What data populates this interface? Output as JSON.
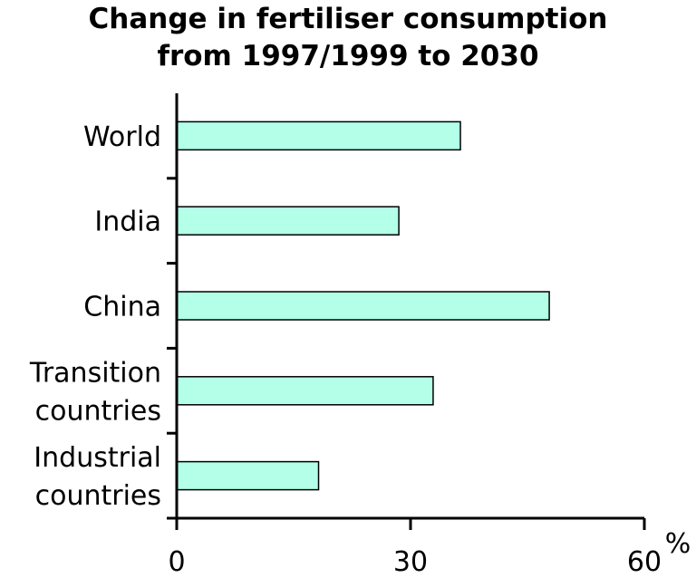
{
  "chart_data": {
    "type": "bar",
    "orientation": "horizontal",
    "title": "Change in fertiliser consumption",
    "subtitle": "from 1997/1999 to 2030",
    "categories": [
      [
        "World"
      ],
      [
        "India"
      ],
      [
        "China"
      ],
      [
        "Transition",
        "countries"
      ],
      [
        "Industrial",
        "countries"
      ]
    ],
    "values": [
      36.4,
      28.5,
      47.8,
      32.9,
      18.2
    ],
    "xlabel": "%",
    "xlim": [
      0,
      60
    ],
    "xticks": [
      "0",
      "30",
      "60"
    ],
    "bar_color": "#b3ffe8",
    "grid": false
  }
}
